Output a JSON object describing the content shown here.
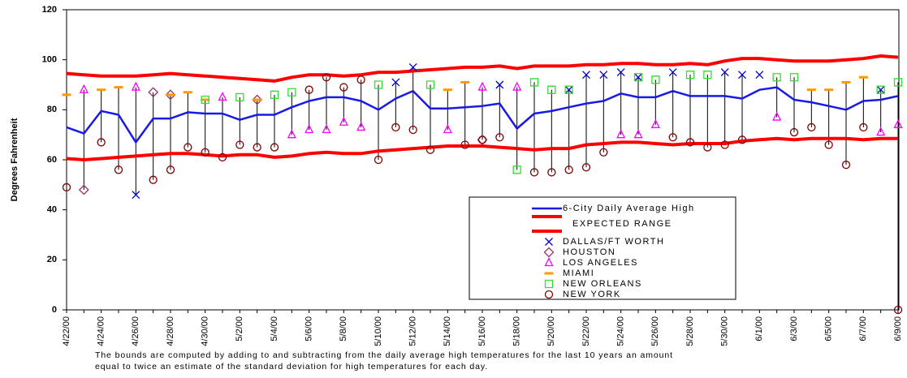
{
  "chart_data": {
    "type": "line",
    "ylabel": "Degrees Fahrenheit",
    "note_lines": [
      "The bounds are computed by adding to and subtracting from the daily average high temperatures for the last 10 years an amount",
      "equal to twice an estimate of the standard deviation for high temperatures for each day."
    ],
    "categories": [
      "4/22/00",
      null,
      "4/24/00",
      null,
      "4/26/00",
      null,
      "4/28/00",
      null,
      "4/30/00",
      null,
      "5/2/00",
      null,
      "5/4/00",
      null,
      "5/6/00",
      null,
      "5/8/00",
      null,
      "5/10/00",
      null,
      "5/12/00",
      null,
      "5/14/00",
      null,
      "5/16/00",
      null,
      "5/18/00",
      null,
      "5/20/00",
      null,
      "5/22/00",
      null,
      "5/24/00",
      null,
      "5/26/00",
      null,
      "5/28/00",
      null,
      "5/30/00",
      null,
      "6/1/00",
      null,
      "6/3/00",
      null,
      "6/5/00",
      null,
      "6/7/00",
      null,
      "6/9/00"
    ],
    "ylim": [
      0,
      120
    ],
    "yticks": [
      0,
      20,
      40,
      60,
      80,
      100,
      120
    ],
    "average": {
      "name": "6-City Daily Average High",
      "color": "#1a1ae6",
      "values": [
        73,
        70.5,
        79.5,
        78,
        67,
        76.5,
        76.5,
        79,
        78.5,
        78.5,
        76,
        78,
        78,
        81,
        83.5,
        85,
        85,
        83.5,
        80,
        84.5,
        87.5,
        80.5,
        80.5,
        81,
        81.5,
        82.5,
        72.5,
        78.5,
        79.5,
        81,
        82.5,
        83.5,
        86.5,
        85,
        85,
        87.5,
        85.5,
        85.5,
        85.5,
        84.5,
        88,
        89,
        84,
        83,
        81.5,
        80,
        83.5,
        84,
        85.5
      ]
    },
    "expected_range": {
      "name": "EXPECTED RANGE",
      "color": "#ff0000",
      "upper": [
        94.5,
        94,
        93.5,
        93.5,
        93.5,
        94,
        94.5,
        94,
        93.5,
        93,
        92.5,
        92,
        91.5,
        93,
        94,
        94,
        93.5,
        94,
        95,
        95,
        95.5,
        96,
        96.5,
        97,
        97,
        97.5,
        96.5,
        97.5,
        97.5,
        97.5,
        98,
        98,
        98.5,
        98.5,
        98,
        98,
        98.5,
        98,
        99.5,
        100.5,
        100.5,
        100,
        99.5,
        99.5,
        99.5,
        100,
        100.5,
        101.5,
        101
      ],
      "lower": [
        60.5,
        60,
        60.5,
        61,
        61.5,
        62,
        62.5,
        62.5,
        62,
        61.5,
        62,
        62,
        61,
        61.5,
        62.5,
        63,
        62.5,
        62.5,
        63.5,
        64,
        64.5,
        65,
        65.5,
        65.5,
        65.5,
        65,
        64.5,
        64,
        64.5,
        64.5,
        66,
        66.5,
        67,
        67,
        66.5,
        66,
        66.5,
        66.5,
        66.5,
        67.5,
        68,
        68.5,
        68,
        68.5,
        68.5,
        68.5,
        68,
        68.5,
        68.5
      ]
    },
    "series": [
      {
        "name": "DALLAS/FT WORTH",
        "color": "#0000cc",
        "marker": "x",
        "values": [
          null,
          null,
          null,
          null,
          46,
          null,
          null,
          null,
          null,
          null,
          null,
          null,
          null,
          null,
          null,
          null,
          null,
          null,
          null,
          91,
          97,
          null,
          null,
          null,
          null,
          90,
          null,
          null,
          null,
          88,
          94,
          94,
          95,
          93,
          null,
          95,
          null,
          null,
          95,
          94,
          94,
          null,
          null,
          null,
          null,
          null,
          null,
          88,
          null
        ]
      },
      {
        "name": "HOUSTON",
        "color": "#993366",
        "marker": "diamond",
        "values": [
          null,
          48,
          null,
          null,
          null,
          87,
          86,
          null,
          null,
          null,
          null,
          84,
          null,
          null,
          null,
          null,
          null,
          null,
          null,
          null,
          null,
          null,
          null,
          null,
          68,
          null,
          null,
          null,
          null,
          null,
          null,
          null,
          null,
          null,
          null,
          null,
          null,
          null,
          null,
          null,
          null,
          null,
          null,
          null,
          null,
          null,
          null,
          null,
          null
        ]
      },
      {
        "name": "LOS ANGELES",
        "color": "#ff00ff",
        "marker": "triangle",
        "values": [
          null,
          88,
          null,
          null,
          89,
          null,
          null,
          null,
          null,
          85,
          null,
          null,
          null,
          70,
          72,
          72,
          75,
          73,
          null,
          null,
          null,
          null,
          72,
          null,
          89,
          null,
          89,
          null,
          null,
          null,
          null,
          null,
          70,
          70,
          74,
          null,
          null,
          null,
          null,
          null,
          null,
          77,
          null,
          null,
          null,
          null,
          null,
          71,
          74
        ]
      },
      {
        "name": "MIAMI",
        "color": "#ff9900",
        "marker": "dash",
        "values": [
          86,
          null,
          88,
          89,
          null,
          null,
          86,
          87,
          84,
          null,
          null,
          84,
          null,
          null,
          null,
          null,
          null,
          null,
          null,
          null,
          null,
          null,
          88,
          91,
          null,
          null,
          null,
          null,
          null,
          null,
          null,
          null,
          null,
          null,
          null,
          null,
          null,
          null,
          null,
          null,
          null,
          null,
          null,
          88,
          88,
          91,
          93,
          null,
          null
        ]
      },
      {
        "name": "NEW ORLEANS",
        "color": "#33dd33",
        "marker": "square",
        "values": [
          null,
          null,
          null,
          null,
          null,
          null,
          null,
          null,
          84,
          null,
          85,
          null,
          86,
          87,
          null,
          null,
          null,
          null,
          90,
          null,
          null,
          90,
          null,
          null,
          null,
          null,
          56,
          91,
          88,
          88,
          null,
          null,
          null,
          93,
          92,
          null,
          94,
          94,
          null,
          null,
          null,
          93,
          93,
          null,
          null,
          null,
          null,
          88,
          91
        ]
      },
      {
        "name": "NEW YORK",
        "color": "#800000",
        "marker": "circle",
        "values": [
          49,
          null,
          67,
          56,
          null,
          52,
          56,
          65,
          63,
          61,
          66,
          65,
          65,
          null,
          88,
          93,
          89,
          92,
          60,
          73,
          72,
          64,
          null,
          66,
          68,
          69,
          null,
          55,
          55,
          56,
          57,
          63,
          null,
          null,
          null,
          69,
          67,
          65,
          66,
          68,
          null,
          null,
          71,
          73,
          66,
          58,
          73,
          null,
          0
        ]
      }
    ]
  }
}
